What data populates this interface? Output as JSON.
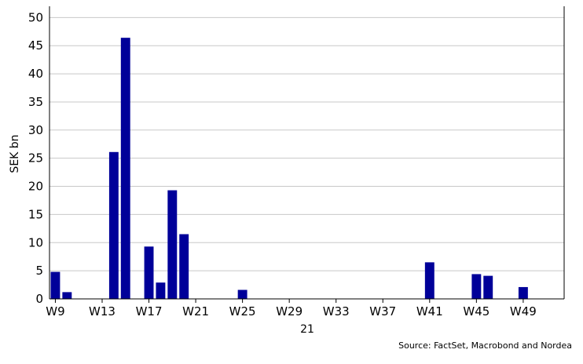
{
  "chart_data": {
    "type": "bar",
    "ylabel": "SEK bn",
    "xlabel": "21",
    "source": "Source: FactSet, Macrobond and Nordea",
    "ylim": [
      0,
      52
    ],
    "yticks": [
      0,
      5,
      10,
      15,
      20,
      25,
      30,
      35,
      40,
      45,
      50
    ],
    "grid": "horizontal",
    "bar_color": "#000099",
    "categories": [
      "W9",
      "W10",
      "W11",
      "W12",
      "W13",
      "W14",
      "W15",
      "W16",
      "W17",
      "W18",
      "W19",
      "W20",
      "W21",
      "W22",
      "W23",
      "W24",
      "W25",
      "W26",
      "W27",
      "W28",
      "W29",
      "W30",
      "W31",
      "W32",
      "W33",
      "W34",
      "W35",
      "W36",
      "W37",
      "W38",
      "W39",
      "W40",
      "W41",
      "W42",
      "W43",
      "W44",
      "W45",
      "W46",
      "W47",
      "W48",
      "W49",
      "W50",
      "W51",
      "W52"
    ],
    "tick_labels": [
      "W9",
      "W13",
      "W17",
      "W21",
      "W25",
      "W29",
      "W33",
      "W37",
      "W41",
      "W45",
      "W49"
    ],
    "values": [
      4.8,
      1.2,
      0,
      0,
      0,
      26.1,
      46.4,
      0,
      9.3,
      2.9,
      19.3,
      11.5,
      0,
      0,
      0,
      0,
      1.6,
      0,
      0,
      0,
      0,
      0,
      0,
      0,
      0,
      0,
      0,
      0,
      0,
      0,
      0,
      0,
      6.5,
      0,
      0,
      0,
      4.4,
      4.1,
      0,
      0,
      2.1,
      0,
      0,
      0
    ]
  }
}
